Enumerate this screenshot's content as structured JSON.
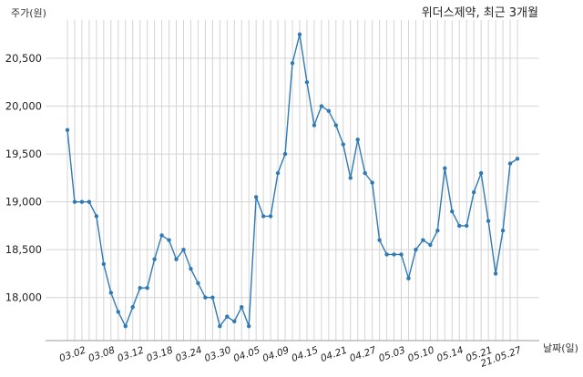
{
  "chart_data": {
    "type": "line",
    "title": "위더스제약, 최근 3개월",
    "ylabel": "주가(원)",
    "xlabel": "날짜(일)",
    "ylim": [
      17550,
      20900
    ],
    "yticks": [
      18000,
      18500,
      19000,
      19500,
      20000,
      20500
    ],
    "ytick_labels": [
      "18,000",
      "18,500",
      "19,000",
      "19,500",
      "20,000",
      "20,500"
    ],
    "xtick_labels": [
      "03.02",
      "03.08",
      "03.12",
      "03.18",
      "03.24",
      "03.30",
      "04.05",
      "04.09",
      "04.15",
      "04.21",
      "04.27",
      "05.03",
      "05.10",
      "05.14",
      "05.21",
      "21.05.27"
    ],
    "xtick_index": [
      2,
      6,
      10,
      14,
      18,
      22,
      26,
      30,
      34,
      38,
      42,
      46,
      50,
      54,
      58,
      62
    ],
    "grid": true,
    "line_color": "#2f7ab4",
    "series": [
      {
        "values": [
          19750,
          19000,
          19000,
          19000,
          18850,
          18350,
          18050,
          17850,
          17700,
          17900,
          18100,
          18100,
          18400,
          18650,
          18600,
          18400,
          18500,
          18300,
          18150,
          18000,
          18000,
          17700,
          17800,
          17750,
          17900,
          17700,
          19050,
          18850,
          18850,
          19300,
          19500,
          20450,
          20750,
          20250,
          19800,
          20000,
          19950,
          19800,
          19600,
          19250,
          19650,
          19300,
          19200,
          18600,
          18450,
          18450,
          18450,
          18200,
          18500,
          18600,
          18550,
          18700,
          19350,
          18900,
          18750,
          18750,
          19100,
          19300,
          18800,
          18250,
          18700,
          19400,
          19450
        ]
      }
    ]
  }
}
